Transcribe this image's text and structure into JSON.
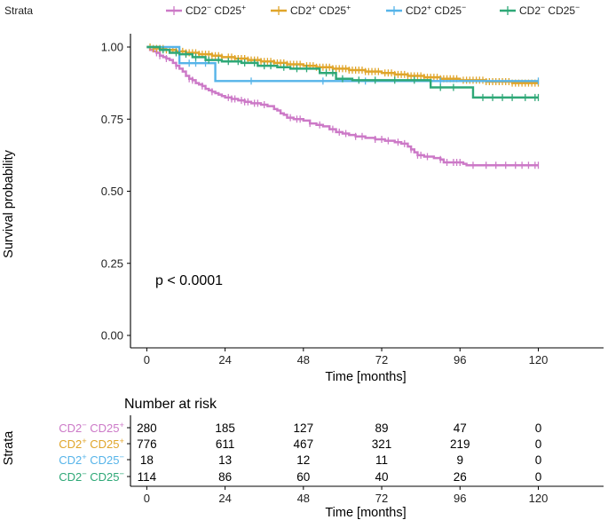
{
  "chart_data": {
    "type": "line",
    "subtype": "kaplan-meier",
    "title": "",
    "xlabel": "Time [months]",
    "ylabel": "Survival probability",
    "xlim": [
      -5,
      140
    ],
    "ylim": [
      0,
      1
    ],
    "x_ticks": [
      0,
      24,
      48,
      72,
      96,
      120
    ],
    "x_tick_labels": [
      "0",
      "24",
      "48",
      "72",
      "96",
      "120"
    ],
    "y_ticks": [
      0,
      0.25,
      0.5,
      0.75,
      1
    ],
    "y_tick_labels": [
      "0.00",
      "0.25",
      "0.50",
      "0.75",
      "1.00"
    ],
    "annotation": "p < 0.0001",
    "legend": {
      "title": "Strata",
      "placement": "top"
    },
    "series": [
      {
        "name": "CD2- CD25+",
        "label_base": [
          "CD2",
          "CD25"
        ],
        "label_sup": [
          "−",
          "+"
        ],
        "color": "#cc79c7",
        "steps": [
          [
            0,
            1
          ],
          [
            1,
            0.99
          ],
          [
            2,
            0.985
          ],
          [
            3,
            0.98
          ],
          [
            4,
            0.97
          ],
          [
            5,
            0.965
          ],
          [
            6,
            0.96
          ],
          [
            7,
            0.955
          ],
          [
            8,
            0.945
          ],
          [
            9,
            0.935
          ],
          [
            10,
            0.925
          ],
          [
            11,
            0.915
          ],
          [
            12,
            0.9
          ],
          [
            13,
            0.89
          ],
          [
            14,
            0.885
          ],
          [
            15,
            0.875
          ],
          [
            16,
            0.87
          ],
          [
            17,
            0.865
          ],
          [
            18,
            0.855
          ],
          [
            19,
            0.85
          ],
          [
            20,
            0.845
          ],
          [
            21,
            0.84
          ],
          [
            22,
            0.835
          ],
          [
            23,
            0.83
          ],
          [
            24,
            0.825
          ],
          [
            26,
            0.82
          ],
          [
            28,
            0.815
          ],
          [
            30,
            0.81
          ],
          [
            32,
            0.805
          ],
          [
            35,
            0.8
          ],
          [
            37,
            0.795
          ],
          [
            39,
            0.785
          ],
          [
            40,
            0.78
          ],
          [
            41,
            0.77
          ],
          [
            42,
            0.765
          ],
          [
            43,
            0.755
          ],
          [
            45,
            0.75
          ],
          [
            48,
            0.745
          ],
          [
            50,
            0.735
          ],
          [
            52,
            0.73
          ],
          [
            54,
            0.725
          ],
          [
            56,
            0.715
          ],
          [
            58,
            0.705
          ],
          [
            60,
            0.7
          ],
          [
            62,
            0.695
          ],
          [
            64,
            0.69
          ],
          [
            67,
            0.685
          ],
          [
            70,
            0.68
          ],
          [
            73,
            0.675
          ],
          [
            76,
            0.67
          ],
          [
            78,
            0.665
          ],
          [
            80,
            0.655
          ],
          [
            81,
            0.645
          ],
          [
            82,
            0.635
          ],
          [
            83,
            0.625
          ],
          [
            85,
            0.62
          ],
          [
            88,
            0.615
          ],
          [
            90,
            0.61
          ],
          [
            91,
            0.6
          ],
          [
            97,
            0.595
          ],
          [
            98,
            0.59
          ]
        ],
        "censors": [
          3,
          4,
          6,
          9,
          13,
          14,
          17,
          20,
          25,
          26,
          27,
          29,
          30,
          31,
          33,
          34,
          36,
          44,
          46,
          47,
          50,
          53,
          57,
          59,
          61,
          64,
          66,
          70,
          72,
          74,
          77,
          79,
          81,
          83,
          84,
          86,
          90,
          92,
          94,
          95,
          96,
          100,
          104,
          107,
          110,
          113,
          115,
          117,
          119,
          120
        ]
      },
      {
        "name": "CD2+ CD25+",
        "label_base": [
          "CD2",
          "CD25"
        ],
        "label_sup": [
          "+",
          "+"
        ],
        "color": "#e0a52a",
        "steps": [
          [
            0,
            1
          ],
          [
            2,
            0.995
          ],
          [
            6,
            0.99
          ],
          [
            9,
            0.985
          ],
          [
            12,
            0.98
          ],
          [
            16,
            0.975
          ],
          [
            20,
            0.97
          ],
          [
            23,
            0.965
          ],
          [
            27,
            0.96
          ],
          [
            31,
            0.955
          ],
          [
            35,
            0.95
          ],
          [
            39,
            0.945
          ],
          [
            43,
            0.94
          ],
          [
            48,
            0.935
          ],
          [
            52,
            0.93
          ],
          [
            57,
            0.925
          ],
          [
            62,
            0.92
          ],
          [
            67,
            0.915
          ],
          [
            72,
            0.91
          ],
          [
            76,
            0.905
          ],
          [
            80,
            0.9
          ],
          [
            85,
            0.895
          ],
          [
            90,
            0.89
          ],
          [
            96,
            0.885
          ],
          [
            104,
            0.88
          ],
          [
            112,
            0.875
          ]
        ],
        "censors": [
          1,
          2,
          3,
          4,
          5,
          6,
          7,
          8,
          9,
          10,
          11,
          12,
          13,
          14,
          15,
          16,
          17,
          18,
          19,
          20,
          21,
          22,
          23,
          25,
          26,
          27,
          28,
          29,
          30,
          31,
          32,
          33,
          34,
          35,
          36,
          37,
          38,
          39,
          40,
          41,
          42,
          43,
          44,
          45,
          46,
          47,
          49,
          50,
          51,
          52,
          53,
          54,
          55,
          56,
          57,
          58,
          59,
          60,
          61,
          62,
          63,
          64,
          65,
          66,
          67,
          68,
          69,
          70,
          71,
          73,
          74,
          75,
          76,
          77,
          78,
          79,
          80,
          81,
          82,
          83,
          84,
          85,
          86,
          87,
          88,
          89,
          90,
          91,
          92,
          93,
          94,
          95,
          97,
          98,
          99,
          100,
          101,
          102,
          103,
          104,
          105,
          106,
          107,
          108,
          109,
          110,
          111,
          112,
          113,
          114,
          115,
          116,
          117,
          118,
          119,
          120
        ]
      },
      {
        "name": "CD2+ CD25-",
        "label_base": [
          "CD2",
          "CD25"
        ],
        "label_sup": [
          "+",
          "−"
        ],
        "color": "#56b4e9",
        "steps": [
          [
            0,
            1
          ],
          [
            10,
            0.944
          ],
          [
            21,
            0.882
          ]
        ],
        "censors": [
          13,
          15,
          18,
          32,
          54,
          67,
          90,
          120
        ]
      },
      {
        "name": "CD2- CD25-",
        "label_base": [
          "CD2",
          "CD25"
        ],
        "label_sup": [
          "−",
          "−"
        ],
        "color": "#2ea877",
        "steps": [
          [
            0,
            1
          ],
          [
            4,
            0.99
          ],
          [
            7,
            0.98
          ],
          [
            10,
            0.975
          ],
          [
            14,
            0.965
          ],
          [
            18,
            0.955
          ],
          [
            23,
            0.95
          ],
          [
            29,
            0.945
          ],
          [
            34,
            0.935
          ],
          [
            40,
            0.93
          ],
          [
            44,
            0.925
          ],
          [
            53,
            0.91
          ],
          [
            58,
            0.89
          ],
          [
            63,
            0.885
          ],
          [
            87,
            0.86
          ],
          [
            100,
            0.825
          ]
        ],
        "censors": [
          5,
          9,
          12,
          15,
          19,
          22,
          25,
          28,
          30,
          33,
          36,
          38,
          42,
          46,
          49,
          55,
          57,
          60,
          65,
          70,
          76,
          82,
          90,
          94,
          103,
          106,
          109,
          112,
          116,
          119,
          120
        ]
      }
    ]
  },
  "risk_table": {
    "title": "Number at risk",
    "ylabel": "Strata",
    "xlabel": "Time [months]",
    "times": [
      0,
      24,
      48,
      72,
      96,
      120
    ],
    "time_labels": [
      "0",
      "24",
      "48",
      "72",
      "96",
      "120"
    ],
    "rows": [
      {
        "counts": [
          "280",
          "185",
          "127",
          "89",
          "47",
          "0"
        ]
      },
      {
        "counts": [
          "776",
          "611",
          "467",
          "321",
          "219",
          "0"
        ]
      },
      {
        "counts": [
          "18",
          "13",
          "12",
          "11",
          "9",
          "0"
        ]
      },
      {
        "counts": [
          "114",
          "86",
          "60",
          "40",
          "26",
          "0"
        ]
      }
    ]
  }
}
